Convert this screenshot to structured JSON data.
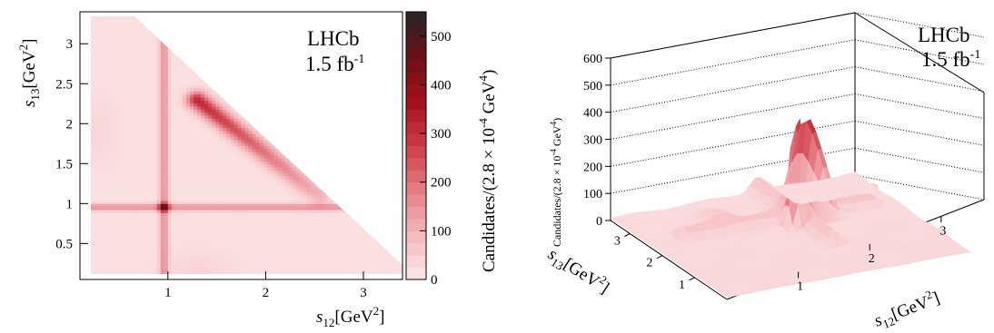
{
  "colors": {
    "scale": [
      "#fce8e9",
      "#f4b9bd",
      "#e57f88",
      "#cc3c47",
      "#a3101d",
      "#6a1016",
      "#262626"
    ],
    "frame": "#000000"
  },
  "chart_data": [
    {
      "type": "heatmap",
      "title": "",
      "experiment": "LHCb",
      "luminosity_base": "1.5 fb",
      "luminosity_exp": "-1",
      "xlabel": {
        "sym": "s",
        "sub": "12",
        "unit": "[GeV",
        "sup": "2",
        "close": "]"
      },
      "ylabel": {
        "sym": "s",
        "sub": "13",
        "unit": "[GeV",
        "sup": "2",
        "close": "]"
      },
      "x_ticks": [
        "1",
        "2",
        "3"
      ],
      "x_tick_values": [
        1,
        2,
        3
      ],
      "y_ticks": [
        "0.5",
        "1",
        "1.5",
        "2",
        "2.5",
        "3"
      ],
      "y_tick_values": [
        0.5,
        1,
        1.5,
        2,
        2.5,
        3
      ],
      "xlim": [
        0.1,
        3.4
      ],
      "ylim": [
        0.05,
        3.4
      ],
      "colorbar": {
        "label": "Candidates/(2.8 × 10",
        "label_exp": "-4",
        "label_unit": " GeV",
        "label_unit_exp": "4",
        "label_close": ")",
        "ticks": [
          "0",
          "100",
          "200",
          "300",
          "400",
          "500"
        ],
        "tick_values": [
          0,
          100,
          200,
          300,
          400,
          500
        ],
        "range": [
          0,
          550
        ]
      },
      "features": [
        {
          "name": "vertical band",
          "x": 0.96,
          "peak": 140
        },
        {
          "name": "horizontal band",
          "y": 0.96,
          "peak": 140
        },
        {
          "name": "crossing peak",
          "x": 0.96,
          "y": 0.96,
          "peak": 550
        },
        {
          "name": "diagonal band",
          "from": [
            1.3,
            2.3
          ],
          "to": [
            2.55,
            1.1
          ],
          "peak": 300
        },
        {
          "name": "background",
          "value": 15
        }
      ]
    },
    {
      "type": "surface",
      "experiment": "LHCb",
      "luminosity_base": "1.5 fb",
      "luminosity_exp": "-1",
      "xlabel": {
        "sym": "s",
        "sub": "12",
        "unit": "[GeV",
        "sup": "2",
        "close": "]"
      },
      "ylabel": {
        "sym": "s",
        "sub": "13",
        "unit": "[GeV",
        "sup": "2",
        "close": "]"
      },
      "zlabel": {
        "text": "Candidates/(2.8 × 10",
        "exp": "-4",
        "unit": " GeV",
        "unit_exp": "4",
        "close": ")"
      },
      "x_ticks": [
        "1",
        "2",
        "3"
      ],
      "x_tick_values": [
        1,
        2,
        3
      ],
      "y_ticks": [
        "1",
        "2",
        "3"
      ],
      "y_tick_values": [
        1,
        2,
        3
      ],
      "z_ticks": [
        "0",
        "100",
        "200",
        "300",
        "400",
        "500",
        "600"
      ],
      "z_tick_values": [
        0,
        100,
        200,
        300,
        400,
        500,
        600
      ],
      "zlim": [
        0,
        600
      ],
      "features": [
        {
          "name": "sharp peak",
          "z": 440
        },
        {
          "name": "plateau",
          "z": 280
        },
        {
          "name": "ridge",
          "z": 70
        }
      ]
    }
  ]
}
